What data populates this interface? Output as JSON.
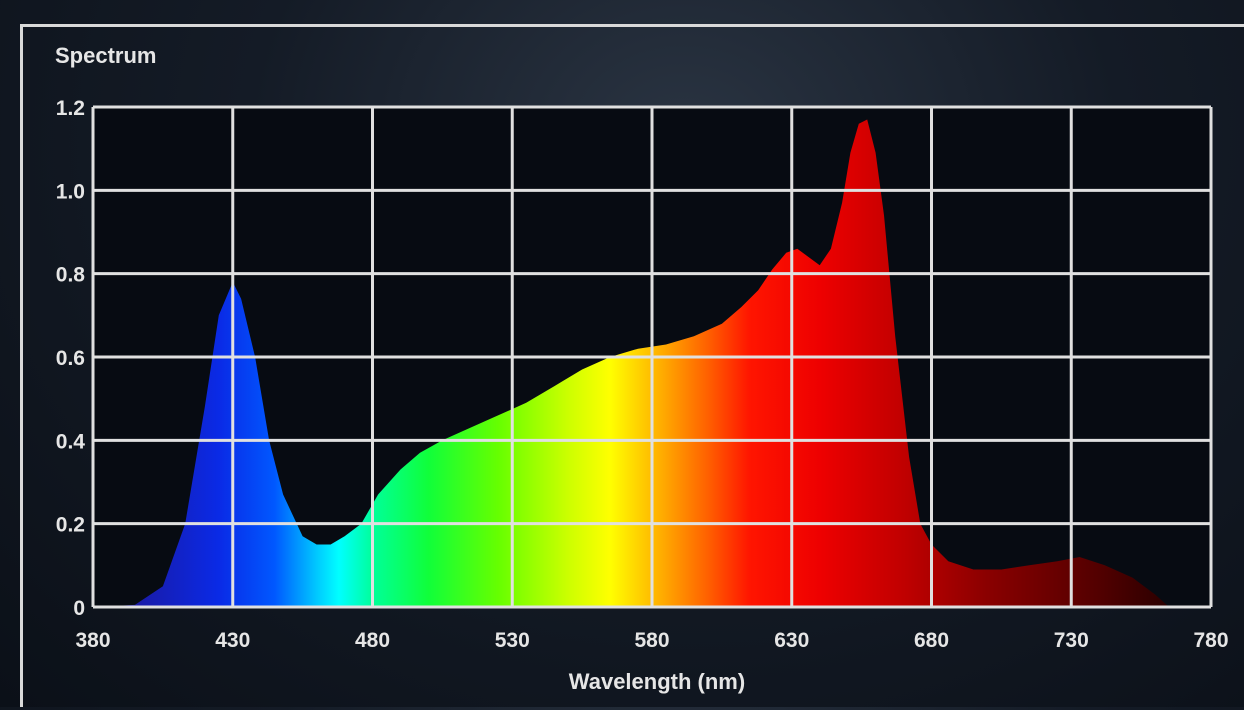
{
  "chart_data": {
    "type": "area",
    "title": "Spectrum",
    "xlabel": "Wavelength (nm)",
    "ylabel": "",
    "xlim": [
      380,
      780
    ],
    "ylim": [
      0,
      1.2
    ],
    "x_ticks": [
      "380",
      "430",
      "480",
      "530",
      "580",
      "630",
      "680",
      "730",
      "780"
    ],
    "y_ticks": [
      "0",
      "0.2",
      "0.4",
      "0.6",
      "0.8",
      "1.0",
      "1.2"
    ],
    "grid": true,
    "series": [
      {
        "x": [
          380,
          395,
          405,
          413,
          420,
          425,
          430,
          433,
          438,
          443,
          448,
          455,
          460,
          465,
          470,
          476,
          482,
          490,
          497,
          505,
          515,
          525,
          535,
          545,
          555,
          565,
          575,
          585,
          595,
          605,
          612,
          618,
          623,
          628,
          632,
          636,
          640,
          644,
          648,
          651,
          654,
          657,
          660,
          663,
          667,
          672,
          676,
          680,
          686,
          695,
          705,
          715,
          725,
          733,
          742,
          752,
          760,
          765
        ],
        "values": [
          0,
          0.005,
          0.05,
          0.2,
          0.48,
          0.7,
          0.78,
          0.74,
          0.6,
          0.4,
          0.27,
          0.17,
          0.15,
          0.15,
          0.17,
          0.2,
          0.27,
          0.33,
          0.37,
          0.4,
          0.43,
          0.46,
          0.49,
          0.53,
          0.57,
          0.6,
          0.62,
          0.63,
          0.65,
          0.68,
          0.72,
          0.76,
          0.81,
          0.85,
          0.86,
          0.84,
          0.82,
          0.86,
          0.97,
          1.09,
          1.16,
          1.17,
          1.09,
          0.94,
          0.65,
          0.36,
          0.2,
          0.15,
          0.11,
          0.09,
          0.09,
          0.1,
          0.11,
          0.12,
          0.1,
          0.07,
          0.03,
          0
        ]
      }
    ],
    "colors": {
      "grid": "#e0e0e0",
      "axis": "#d9d9d9",
      "text": "#e6e6e6",
      "plot_bg": "#070b12",
      "spectrum_gradient": [
        {
          "wavelength": 395,
          "color": "#1a1aa6"
        },
        {
          "wavelength": 425,
          "color": "#0a2ae6"
        },
        {
          "wavelength": 445,
          "color": "#0058ff"
        },
        {
          "wavelength": 460,
          "color": "#00c8ff"
        },
        {
          "wavelength": 468,
          "color": "#00ffff"
        },
        {
          "wavelength": 480,
          "color": "#00ff9a"
        },
        {
          "wavelength": 500,
          "color": "#10ff3a"
        },
        {
          "wavelength": 525,
          "color": "#66ff00"
        },
        {
          "wavelength": 550,
          "color": "#ccff00"
        },
        {
          "wavelength": 565,
          "color": "#ffff00"
        },
        {
          "wavelength": 582,
          "color": "#ffb300"
        },
        {
          "wavelength": 600,
          "color": "#ff6000"
        },
        {
          "wavelength": 615,
          "color": "#ff1500"
        },
        {
          "wavelength": 640,
          "color": "#ee0000"
        },
        {
          "wavelength": 670,
          "color": "#c00000"
        },
        {
          "wavelength": 700,
          "color": "#8a0000"
        },
        {
          "wavelength": 740,
          "color": "#520000"
        },
        {
          "wavelength": 765,
          "color": "#2a0000"
        }
      ]
    }
  }
}
